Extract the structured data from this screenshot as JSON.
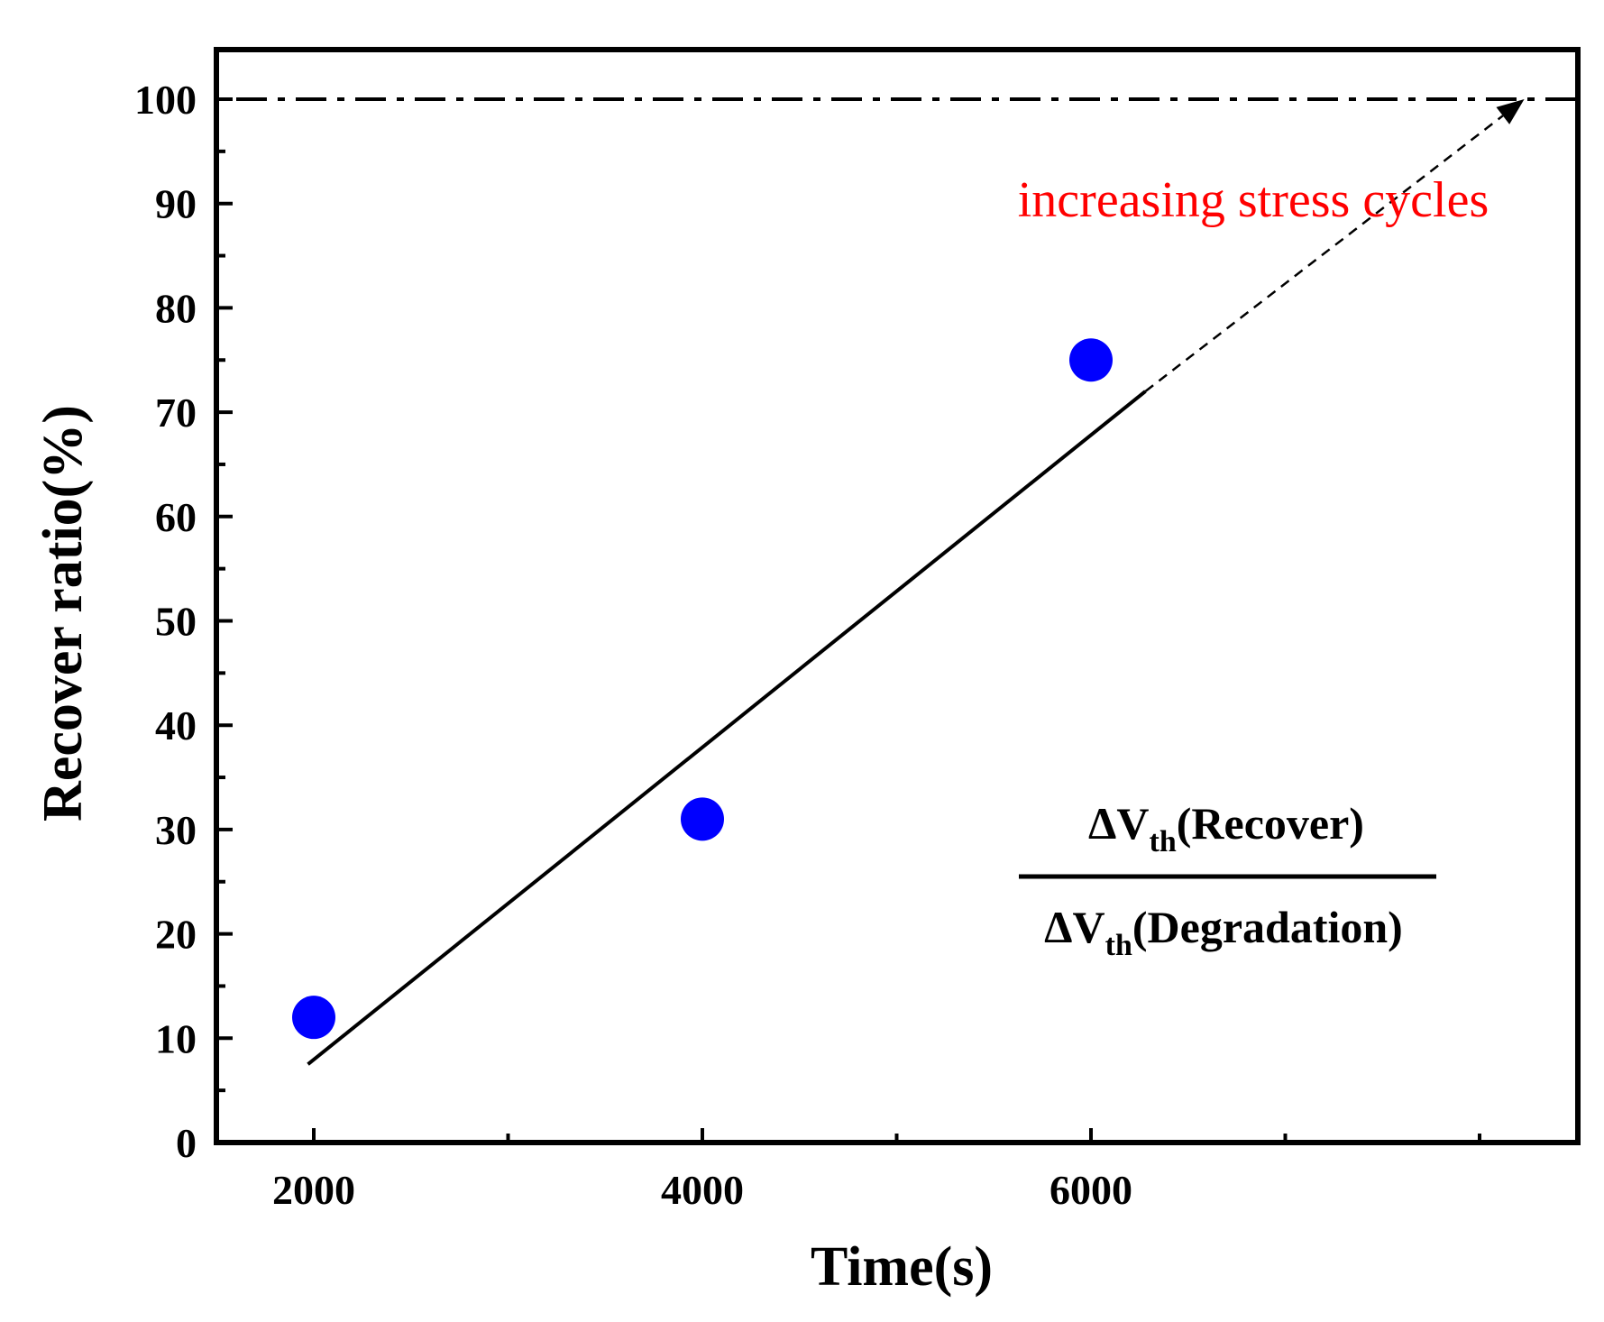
{
  "chart_data": {
    "type": "scatter",
    "title": "",
    "xlabel": "Time(s)",
    "ylabel": "Recover ratio(%)",
    "xlim": [
      1500,
      8500
    ],
    "ylim": [
      0,
      100
    ],
    "x_ticks": [
      2000,
      4000,
      6000
    ],
    "x_minor_ticks": [
      3000,
      5000,
      7000,
      8000
    ],
    "y_ticks": [
      0,
      10,
      20,
      30,
      40,
      50,
      60,
      70,
      80,
      90,
      100
    ],
    "y_minor_ticks": [
      5,
      15,
      25,
      35,
      45,
      55,
      65,
      75,
      85,
      95
    ],
    "grid": false,
    "series": [
      {
        "name": "Recover ratio",
        "x": [
          2000,
          4000,
          6000
        ],
        "y": [
          12,
          31,
          75
        ],
        "color": "#0000ff",
        "marker": "circle"
      }
    ],
    "fit_line": {
      "x": [
        1970,
        6280
      ],
      "y": [
        7.5,
        72
      ],
      "color": "#000000"
    },
    "trend_arrow": {
      "x": [
        6280,
        8230
      ],
      "y": [
        72,
        100
      ],
      "style": "dashed",
      "color": "#000000"
    },
    "reference_line": {
      "y": 100,
      "style": "dash-dot",
      "color": "#000000"
    },
    "annotation": {
      "text": "increasing stress cycles",
      "color": "#ff0000"
    },
    "formula": {
      "numerator": {
        "symbol": "ΔV",
        "subscript": "th",
        "text": "(Recover)"
      },
      "denominator": {
        "symbol": "ΔV",
        "subscript": "th",
        "text": "(Degradation)"
      }
    }
  }
}
